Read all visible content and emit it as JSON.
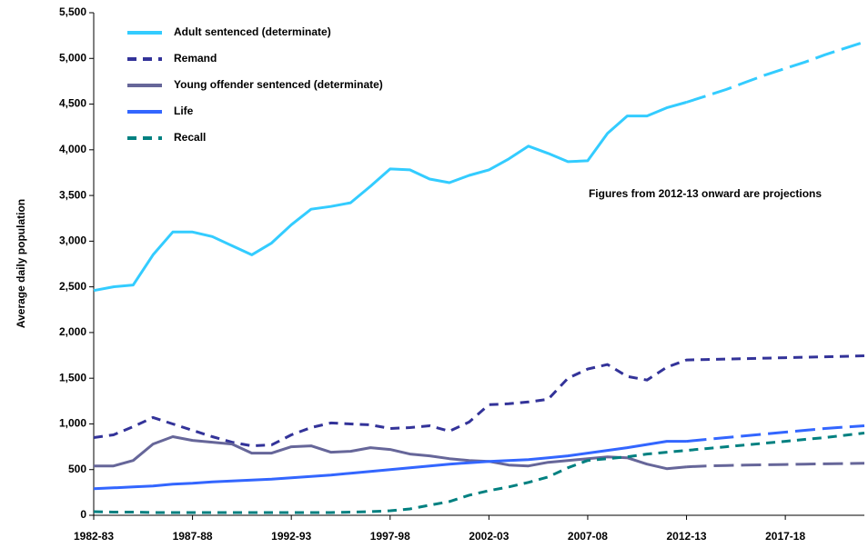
{
  "chart_data": {
    "type": "line",
    "y_label": "Average daily population",
    "annotation": "Figures from 2012-13 onward are projections",
    "projection_from": "2012-13",
    "categories": [
      "1982-83",
      null,
      null,
      null,
      null,
      "1987-88",
      null,
      null,
      null,
      null,
      "1992-93",
      null,
      null,
      null,
      null,
      "1997-98",
      null,
      null,
      null,
      null,
      "2002-03",
      null,
      null,
      null,
      null,
      "2007-08",
      null,
      null,
      null,
      null,
      "2012-13",
      null,
      null,
      null,
      null,
      "2017-18",
      null,
      null,
      null,
      null
    ],
    "ylim": [
      0,
      5500
    ],
    "yticks": [
      0,
      500,
      {
        "value": 1000,
        "label": "1,000"
      },
      {
        "value": 1500,
        "label": "1,500"
      },
      {
        "value": 2000,
        "label": "2,000"
      },
      {
        "value": 2500,
        "label": "2,500"
      },
      {
        "value": 3000,
        "label": "3,000"
      },
      {
        "value": 3500,
        "label": "3,500"
      },
      {
        "value": 4000,
        "label": "4,000"
      },
      {
        "value": 4500,
        "label": "4,500"
      },
      {
        "value": 5000,
        "label": "5,000"
      },
      {
        "value": 5500,
        "label": "5,500"
      }
    ],
    "series": [
      {
        "name": "Adult sentenced (determinate)",
        "color": "#33ccff",
        "dashed": false,
        "values": [
          2460,
          2500,
          2520,
          2850,
          3100,
          3100,
          3050,
          2950,
          2850,
          2980,
          3180,
          3350,
          3380,
          3420,
          3600,
          3790,
          3780,
          3680,
          3640,
          3720,
          3780,
          3900,
          4040,
          3960,
          3870,
          3880,
          4180,
          4370,
          4370,
          4460,
          4520,
          4590,
          4660,
          4740,
          4820,
          4890,
          4960,
          5040,
          5110,
          5180
        ]
      },
      {
        "name": "Remand",
        "color": "#333399",
        "dashed": true,
        "values": [
          850,
          880,
          970,
          1070,
          1000,
          930,
          860,
          800,
          760,
          770,
          880,
          960,
          1010,
          1000,
          990,
          950,
          960,
          980,
          920,
          1020,
          1210,
          1220,
          1240,
          1270,
          1500,
          1600,
          1650,
          1520,
          1480,
          1620,
          1700,
          1705,
          1710,
          1715,
          1720,
          1725,
          1730,
          1735,
          1740,
          1745
        ]
      },
      {
        "name": "Young offender sentenced (determinate)",
        "color": "#666699",
        "dashed": false,
        "values": [
          540,
          540,
          600,
          780,
          860,
          820,
          800,
          780,
          680,
          680,
          750,
          760,
          690,
          700,
          740,
          720,
          670,
          650,
          620,
          600,
          590,
          550,
          540,
          580,
          600,
          620,
          640,
          630,
          560,
          510,
          530,
          540,
          545,
          550,
          553,
          556,
          560,
          563,
          566,
          570
        ]
      },
      {
        "name": "Life",
        "color": "#3366ff",
        "dashed": false,
        "values": [
          290,
          300,
          310,
          320,
          340,
          350,
          365,
          375,
          385,
          395,
          410,
          425,
          440,
          460,
          480,
          500,
          520,
          540,
          560,
          575,
          590,
          600,
          610,
          630,
          650,
          680,
          710,
          740,
          775,
          810,
          810,
          830,
          850,
          870,
          890,
          910,
          930,
          950,
          965,
          980
        ]
      },
      {
        "name": "Recall",
        "color": "#008080",
        "dashed": true,
        "values": [
          40,
          35,
          35,
          30,
          30,
          30,
          30,
          30,
          30,
          30,
          30,
          30,
          30,
          35,
          40,
          50,
          70,
          110,
          150,
          220,
          270,
          310,
          360,
          420,
          520,
          600,
          620,
          640,
          670,
          690,
          710,
          730,
          750,
          770,
          790,
          810,
          830,
          850,
          875,
          900
        ]
      }
    ]
  }
}
